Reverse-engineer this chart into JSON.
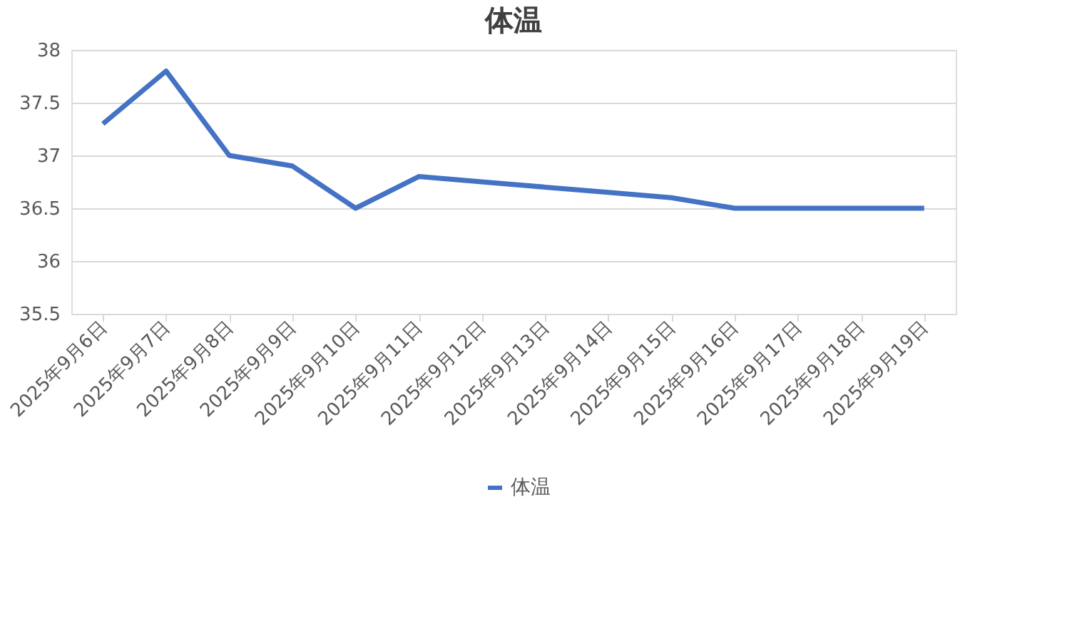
{
  "chart_data": {
    "type": "line",
    "title": "体温",
    "categories": [
      "2025年9月6日",
      "2025年9月7日",
      "2025年9月8日",
      "2025年9月9日",
      "2025年9月10日",
      "2025年9月11日",
      "2025年9月12日",
      "2025年9月13日",
      "2025年9月14日",
      "2025年9月15日",
      "2025年9月16日",
      "2025年9月17日",
      "2025年9月18日",
      "2025年9月19日"
    ],
    "series": [
      {
        "name": "体温",
        "color": "#4472c4",
        "values": [
          37.3,
          37.8,
          37.0,
          36.9,
          36.5,
          36.8,
          36.75,
          36.7,
          36.65,
          36.6,
          36.5,
          36.5,
          36.5,
          36.5
        ]
      }
    ],
    "ylim": [
      35.5,
      38
    ],
    "yticks": [
      35.5,
      36,
      36.5,
      37,
      37.5,
      38
    ],
    "grid": "y",
    "legend": "bottom",
    "marker": "none",
    "line_style": "solid"
  }
}
